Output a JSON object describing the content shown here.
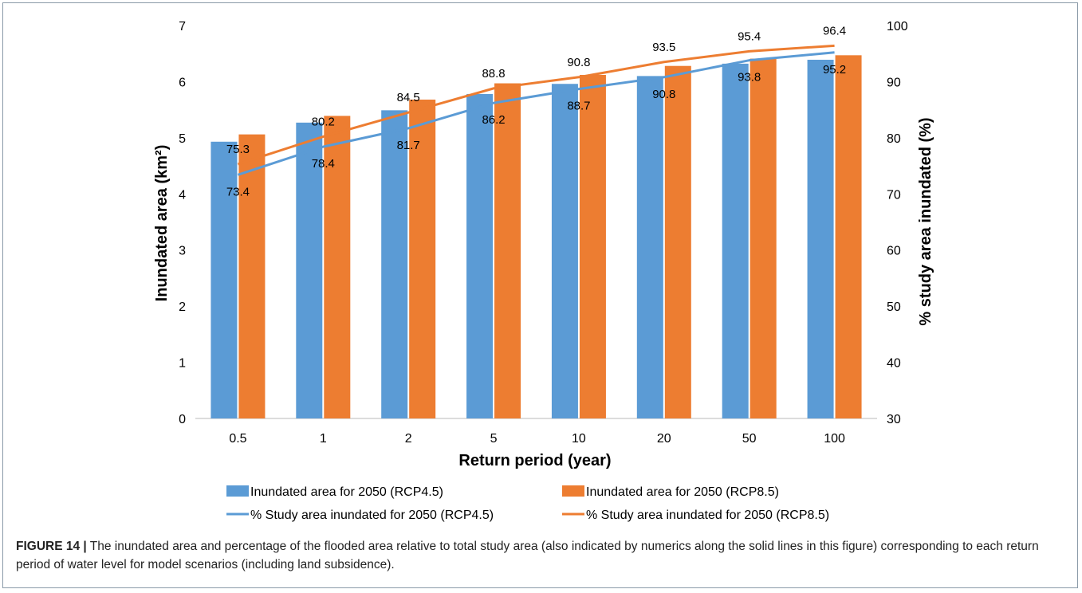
{
  "chart_data": {
    "type": "bar+line",
    "xlabel": "Return period (year)",
    "ylabel_left": "Inundated area (km²)",
    "ylabel_right": "% study area inundated (%)",
    "categories": [
      "0.5",
      "1",
      "2",
      "5",
      "10",
      "20",
      "50",
      "100"
    ],
    "ylim_left": [
      0,
      7
    ],
    "yticks_left": [
      "0",
      "1",
      "2",
      "3",
      "4",
      "5",
      "6",
      "7"
    ],
    "ylim_right": [
      30,
      100
    ],
    "yticks_right": [
      "30",
      "40",
      "50",
      "60",
      "70",
      "80",
      "90",
      "100"
    ],
    "grid": false,
    "legend_position": "bottom",
    "bar_series": [
      {
        "name": "Inundated area for 2050 (RCP4.5)",
        "color": "#5b9bd5",
        "values": [
          4.93,
          5.27,
          5.49,
          5.78,
          5.96,
          6.1,
          6.32,
          6.39
        ]
      },
      {
        "name": "Inundated area for 2050 (RCP8.5)",
        "color": "#ed7d31",
        "values": [
          5.06,
          5.39,
          5.68,
          5.97,
          6.12,
          6.28,
          6.41,
          6.47
        ]
      }
    ],
    "line_series": [
      {
        "name": "% Study area inundated for 2050 (RCP4.5)",
        "color": "#5b9bd5",
        "values": [
          73.4,
          78.4,
          81.7,
          86.2,
          88.7,
          90.8,
          93.8,
          95.2
        ],
        "labels": [
          "73.4",
          "78.4",
          "81.7",
          "86.2",
          "88.7",
          "90.8",
          "93.8",
          "95.2"
        ]
      },
      {
        "name": "% Study area inundated for 2050 (RCP8.5)",
        "color": "#ed7d31",
        "values": [
          75.3,
          80.2,
          84.5,
          88.8,
          90.8,
          93.5,
          95.4,
          96.4
        ],
        "labels": [
          "75.3",
          "80.2",
          "84.5",
          "88.8",
          "90.8",
          "93.5",
          "95.4",
          "96.4"
        ]
      }
    ]
  },
  "caption": {
    "label": "FIGURE 14 |",
    "text": " The inundated area and percentage of the flooded area relative to total study area (also indicated by numerics along the solid lines in this figure) corresponding to each return period of water level for model scenarios (including land subsidence)."
  }
}
